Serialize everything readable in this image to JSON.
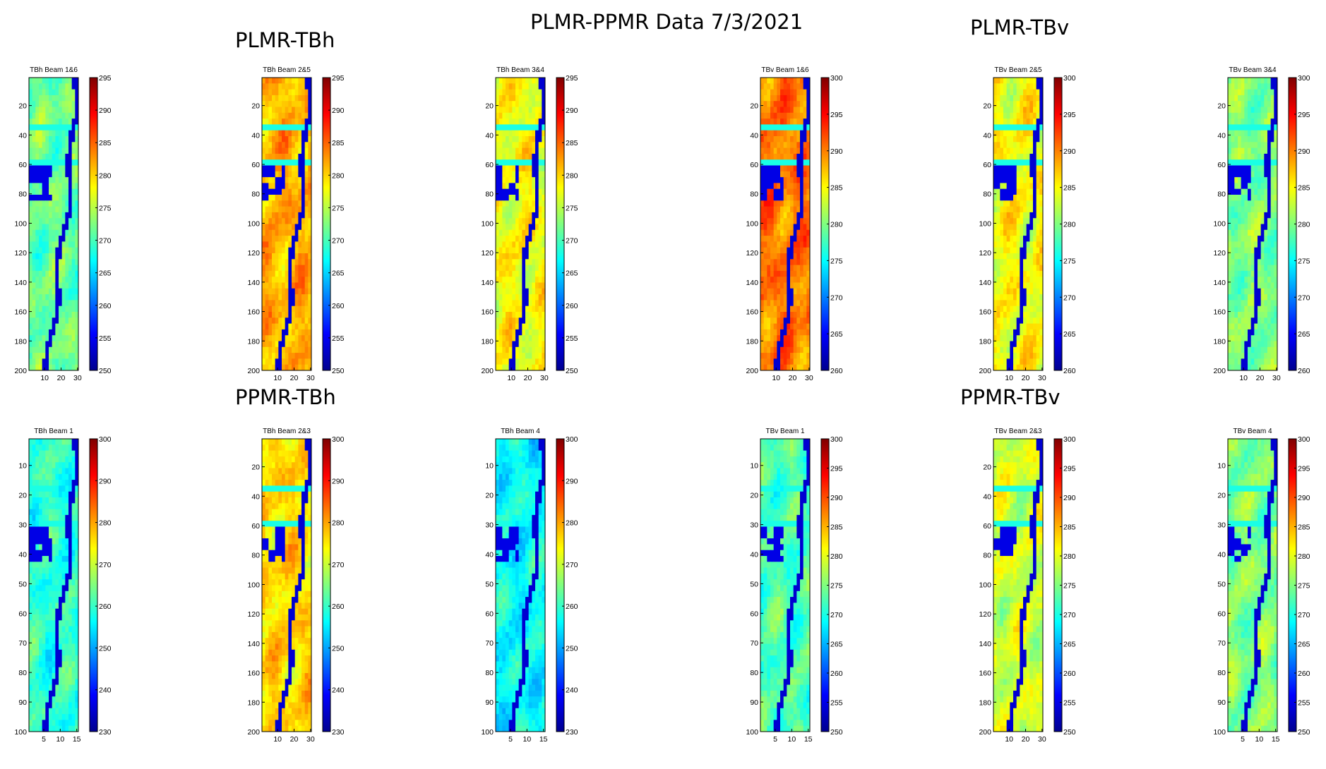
{
  "figure": {
    "title": "PLMR-PPMR Data 7/3/2021",
    "section_labels": {
      "plmr_tbh": "PLMR-TBh",
      "plmr_tbv": "PLMR-TBv",
      "ppmr_tbh": "PPMR-TBh",
      "ppmr_tbv": "PPMR-TBv"
    }
  },
  "chart_data": [
    {
      "type": "heatmap",
      "title": "TBh Beam 1&6",
      "xticks": [
        10,
        20,
        30
      ],
      "yticks": [
        20,
        40,
        60,
        80,
        100,
        120,
        140,
        160,
        180,
        200
      ],
      "xlim": [
        1,
        30
      ],
      "ylim": [
        1,
        200
      ],
      "colorbar": {
        "min": 250,
        "max": 295,
        "ticks": [
          250,
          255,
          260,
          265,
          270,
          275,
          280,
          285,
          290,
          295
        ]
      }
    },
    {
      "type": "heatmap",
      "title": "TBh Beam 2&5",
      "xticks": [
        10,
        20,
        30
      ],
      "yticks": [
        20,
        40,
        60,
        80,
        100,
        120,
        140,
        160,
        180,
        200
      ],
      "xlim": [
        1,
        30
      ],
      "ylim": [
        1,
        200
      ],
      "colorbar": {
        "min": 250,
        "max": 295,
        "ticks": [
          250,
          255,
          260,
          265,
          270,
          275,
          280,
          285,
          290,
          295
        ]
      }
    },
    {
      "type": "heatmap",
      "title": "TBh Beam 3&4",
      "xticks": [
        10,
        20,
        30
      ],
      "yticks": [
        20,
        40,
        60,
        80,
        100,
        120,
        140,
        160,
        180,
        200
      ],
      "xlim": [
        1,
        30
      ],
      "ylim": [
        1,
        200
      ],
      "colorbar": {
        "min": 250,
        "max": 295,
        "ticks": [
          250,
          255,
          260,
          265,
          270,
          275,
          280,
          285,
          290,
          295
        ]
      }
    },
    {
      "type": "heatmap",
      "title": "TBv Beam 1&6",
      "xticks": [
        10,
        20,
        30
      ],
      "yticks": [
        20,
        40,
        60,
        80,
        100,
        120,
        140,
        160,
        180,
        200
      ],
      "xlim": [
        1,
        30
      ],
      "ylim": [
        1,
        200
      ],
      "colorbar": {
        "min": 260,
        "max": 300,
        "ticks": [
          260,
          265,
          270,
          275,
          280,
          285,
          290,
          295,
          300
        ]
      }
    },
    {
      "type": "heatmap",
      "title": "TBv Beam 2&5",
      "xticks": [
        10,
        20,
        30
      ],
      "yticks": [
        20,
        40,
        60,
        80,
        100,
        120,
        140,
        160,
        180,
        200
      ],
      "xlim": [
        1,
        30
      ],
      "ylim": [
        1,
        200
      ],
      "colorbar": {
        "min": 260,
        "max": 300,
        "ticks": [
          260,
          265,
          270,
          275,
          280,
          285,
          290,
          295,
          300
        ]
      }
    },
    {
      "type": "heatmap",
      "title": "TBv Beam 3&4",
      "xticks": [
        10,
        20,
        30
      ],
      "yticks": [
        20,
        40,
        60,
        80,
        100,
        120,
        140,
        160,
        180,
        200
      ],
      "xlim": [
        1,
        30
      ],
      "ylim": [
        1,
        200
      ],
      "colorbar": {
        "min": 260,
        "max": 300,
        "ticks": [
          260,
          265,
          270,
          275,
          280,
          285,
          290,
          295,
          300
        ]
      }
    },
    {
      "type": "heatmap",
      "title": "TBh Beam 1",
      "xticks": [
        5,
        10,
        15
      ],
      "yticks": [
        10,
        20,
        30,
        40,
        50,
        60,
        70,
        80,
        90,
        100
      ],
      "xlim": [
        1,
        15
      ],
      "ylim": [
        1,
        100
      ],
      "colorbar": {
        "min": 230,
        "max": 300,
        "ticks": [
          230,
          240,
          250,
          260,
          270,
          280,
          290,
          300
        ]
      }
    },
    {
      "type": "heatmap",
      "title": "TBh Beam 2&3",
      "xticks": [
        10,
        20,
        30
      ],
      "yticks": [
        20,
        40,
        60,
        80,
        100,
        120,
        140,
        160,
        180,
        200
      ],
      "xlim": [
        1,
        30
      ],
      "ylim": [
        1,
        200
      ],
      "colorbar": {
        "min": 230,
        "max": 300,
        "ticks": [
          230,
          240,
          250,
          260,
          270,
          280,
          290,
          300
        ]
      }
    },
    {
      "type": "heatmap",
      "title": "TBh Beam 4",
      "xticks": [
        5,
        10,
        15
      ],
      "yticks": [
        10,
        20,
        30,
        40,
        50,
        60,
        70,
        80,
        90,
        100
      ],
      "xlim": [
        1,
        15
      ],
      "ylim": [
        1,
        100
      ],
      "colorbar": {
        "min": 230,
        "max": 300,
        "ticks": [
          230,
          240,
          250,
          260,
          270,
          280,
          290,
          300
        ]
      }
    },
    {
      "type": "heatmap",
      "title": "TBv Beam 1",
      "xticks": [
        5,
        10,
        15
      ],
      "yticks": [
        10,
        20,
        30,
        40,
        50,
        60,
        70,
        80,
        90,
        100
      ],
      "xlim": [
        1,
        15
      ],
      "ylim": [
        1,
        100
      ],
      "colorbar": {
        "min": 250,
        "max": 300,
        "ticks": [
          250,
          255,
          260,
          265,
          270,
          275,
          280,
          285,
          290,
          295,
          300
        ]
      }
    },
    {
      "type": "heatmap",
      "title": "TBv Beam 2&3",
      "xticks": [
        10,
        20,
        30
      ],
      "yticks": [
        20,
        40,
        60,
        80,
        100,
        120,
        140,
        160,
        180,
        200
      ],
      "xlim": [
        1,
        30
      ],
      "ylim": [
        1,
        200
      ],
      "colorbar": {
        "min": 250,
        "max": 300,
        "ticks": [
          250,
          255,
          260,
          265,
          270,
          275,
          280,
          285,
          290,
          295,
          300
        ]
      }
    },
    {
      "type": "heatmap",
      "title": "TBv Beam 4",
      "xticks": [
        5,
        10,
        15
      ],
      "yticks": [
        10,
        20,
        30,
        40,
        50,
        60,
        70,
        80,
        90,
        100
      ],
      "xlim": [
        1,
        15
      ],
      "ylim": [
        1,
        100
      ],
      "colorbar": {
        "min": 250,
        "max": 300,
        "ticks": [
          250,
          255,
          260,
          265,
          270,
          275,
          280,
          285,
          290,
          295,
          300
        ]
      }
    }
  ]
}
